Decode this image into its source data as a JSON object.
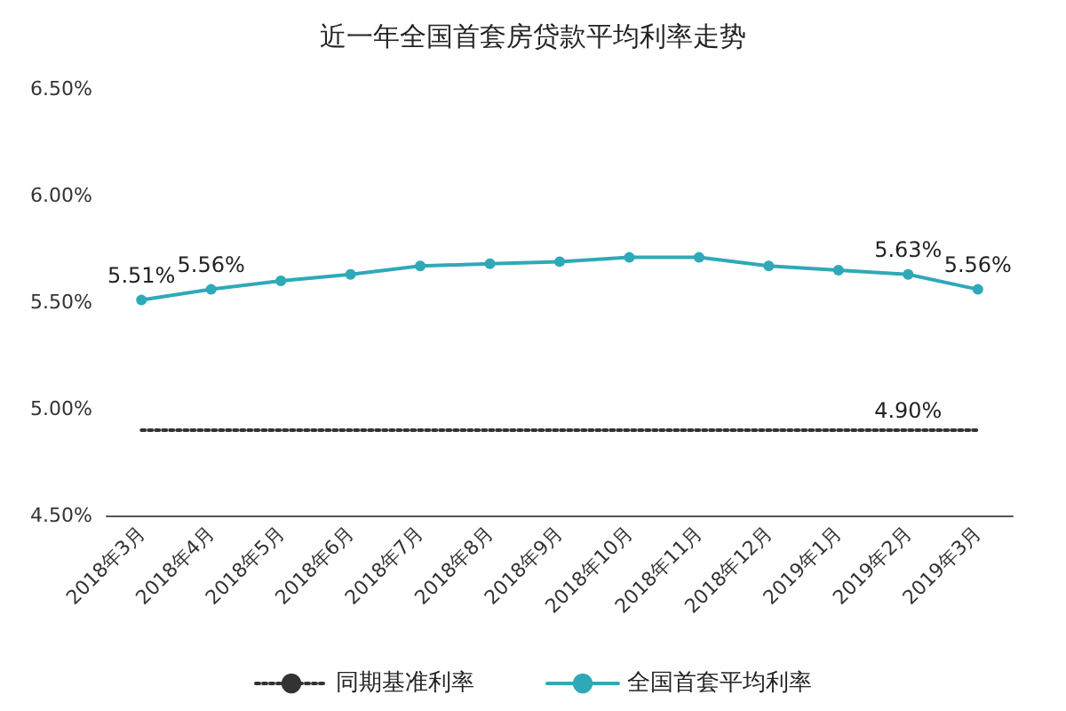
{
  "chart_data": {
    "type": "line",
    "title": "近一年全国首套房贷款平均利率走势",
    "categories": [
      "2018年3月",
      "2018年4月",
      "2018年5月",
      "2018年6月",
      "2018年7月",
      "2018年8月",
      "2018年9月",
      "2018年10月",
      "2018年11月",
      "2018年12月",
      "2019年1月",
      "2019年2月",
      "2019年3月"
    ],
    "series": [
      {
        "name": "同期基准利率",
        "color": "#333333",
        "line_style": "dotted",
        "marker": "none",
        "values": [
          4.9,
          4.9,
          4.9,
          4.9,
          4.9,
          4.9,
          4.9,
          4.9,
          4.9,
          4.9,
          4.9,
          4.9,
          4.9
        ],
        "value_labels": [
          null,
          null,
          null,
          null,
          null,
          null,
          null,
          null,
          null,
          null,
          null,
          "4.90%",
          null
        ]
      },
      {
        "name": "全国首套平均利率",
        "color": "#2fa9b8",
        "line_style": "solid",
        "marker": "circle",
        "values": [
          5.51,
          5.56,
          5.6,
          5.63,
          5.67,
          5.68,
          5.69,
          5.71,
          5.71,
          5.67,
          5.65,
          5.63,
          5.56
        ],
        "value_labels": [
          "5.51%",
          "5.56%",
          null,
          null,
          null,
          null,
          null,
          null,
          null,
          null,
          null,
          "5.63%",
          "5.56%"
        ]
      }
    ],
    "ylim": [
      4.5,
      6.5
    ],
    "yticks": [
      {
        "value": 4.5,
        "label": "4.50%"
      },
      {
        "value": 5,
        "label": "5.00%"
      },
      {
        "value": 5.5,
        "label": "5.50%"
      },
      {
        "value": 6,
        "label": "6.00%"
      },
      {
        "value": 6.5,
        "label": "6.50%"
      }
    ],
    "grid": false,
    "legend": "bottom"
  }
}
